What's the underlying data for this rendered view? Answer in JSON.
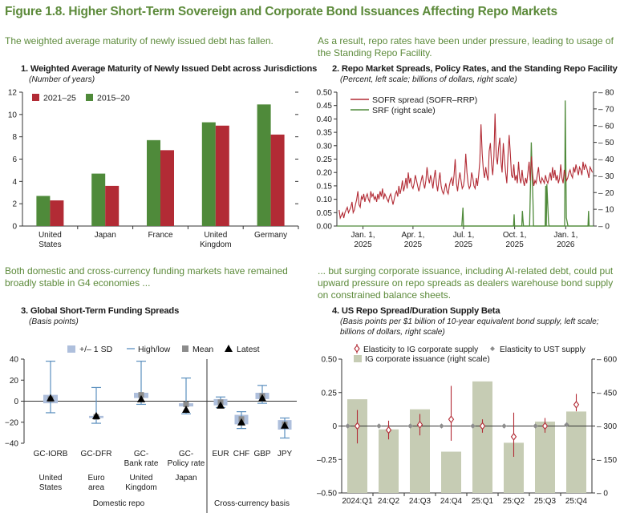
{
  "figure": {
    "title": "Figure 1.8. Higher Short-Term Sovereign and Corporate Bond Issuances Affecting Repo Markets",
    "leads": [
      "The weighted average maturity of newly issued debt has fallen.",
      "As a result, repo rates have been under pressure, leading to usage of the Standing Repo Facility.",
      "Both domestic and cross-currency funding markets have remained broadly stable in G4 economies ...",
      "... but surging corporate issuance, including AI-related debt, could put upward pressure on repo spreads as dealers warehouse bond supply on constrained balance sheets."
    ]
  },
  "colors": {
    "red": "#b22b35",
    "green": "#4f8a3a",
    "light_blue": "#b8c5de",
    "band_blue": "#aebfdc",
    "line_blue": "#5b8fbf",
    "grey": "#8c8c8c",
    "olive": "#c6ccb4",
    "title_green": "#5c8a3a"
  },
  "chart_data": [
    {
      "id": "panel1",
      "type": "bar",
      "title": "1. Weighted Average Maturity of Newly Issued Debt across Jurisdictions",
      "subtitle": "(Number of years)",
      "categories": [
        [
          "United",
          "States"
        ],
        [
          "Japan"
        ],
        [
          "France"
        ],
        [
          "United",
          "Kingdom"
        ],
        [
          "Germany"
        ]
      ],
      "series": [
        {
          "name": "2015–20",
          "values": [
            2.7,
            4.7,
            7.7,
            9.3,
            10.9
          ]
        },
        {
          "name": "2021–25",
          "values": [
            2.3,
            3.6,
            6.8,
            9.0,
            8.2
          ]
        }
      ],
      "legend_order": [
        "2021–25",
        "2015–20"
      ],
      "ylim": [
        0,
        12
      ],
      "yticks": [
        0,
        2,
        4,
        6,
        8,
        10,
        12
      ]
    },
    {
      "id": "panel2",
      "type": "line",
      "title": "2. Repo Market Spreads, Policy Rates, and the Standing Repo Facility",
      "subtitle": "(Percent, left scale; billions of dollars, right scale)",
      "x_start": "2024-11-15",
      "x_end": "2026-02-20",
      "xticks": [
        [
          "Jan. 1,",
          "2025"
        ],
        [
          "Apr. 1,",
          "2025"
        ],
        [
          "Jul. 1,",
          "2025"
        ],
        [
          "Oct. 1,",
          "2025"
        ],
        [
          "Jan. 1,",
          "2026"
        ]
      ],
      "xtick_dates": [
        "2025-01-01",
        "2025-04-01",
        "2025-07-01",
        "2025-10-01",
        "2026-01-01"
      ],
      "ylim_left": [
        0,
        0.5
      ],
      "yticks_left": [
        "0.00",
        "0.05",
        "0.10",
        "0.15",
        "0.20",
        "0.25",
        "0.30",
        "0.35",
        "0.40",
        "0.45",
        "0.50"
      ],
      "ylim_right": [
        0,
        80
      ],
      "yticks_right": [
        0,
        10,
        20,
        30,
        40,
        50,
        60,
        70,
        80
      ],
      "series": [
        {
          "name": "SOFR spread (SOFR–RRP)",
          "axis": "left",
          "key": "sofr",
          "values": [
            0.06,
            0.03,
            0.04,
            0.05,
            0.03,
            0.05,
            0.06,
            0.07,
            0.05,
            0.06,
            0.07,
            0.09,
            0.05,
            0.06,
            0.08,
            0.1,
            0.13,
            0.08,
            0.07,
            0.11,
            0.1,
            0.12,
            0.09,
            0.11,
            0.12,
            0.1,
            0.09,
            0.13,
            0.11,
            0.12,
            0.1,
            0.11,
            0.09,
            0.12,
            0.1,
            0.13,
            0.11,
            0.14,
            0.1,
            0.12,
            0.11,
            0.1,
            0.09,
            0.11,
            0.12,
            0.1,
            0.08,
            0.1,
            0.12,
            0.13,
            0.11,
            0.15,
            0.12,
            0.14,
            0.17,
            0.13,
            0.15,
            0.18,
            0.14,
            0.2,
            0.16,
            0.18,
            0.15,
            0.14,
            0.16,
            0.19,
            0.17,
            0.15,
            0.13,
            0.15,
            0.17,
            0.19,
            0.16,
            0.14,
            0.17,
            0.22,
            0.18,
            0.16,
            0.19,
            0.17,
            0.14,
            0.18,
            0.21,
            0.16,
            0.13,
            0.17,
            0.2,
            0.15,
            0.13,
            0.12,
            0.14,
            0.16,
            0.13,
            0.12,
            0.15,
            0.17,
            0.18,
            0.15,
            0.19,
            0.25,
            0.16,
            0.13,
            0.17,
            0.2,
            0.17,
            0.14,
            0.15,
            0.18,
            0.27,
            0.2,
            0.16,
            0.14,
            0.15,
            0.2,
            0.18,
            0.15,
            0.14,
            0.18,
            0.15,
            0.19,
            0.24,
            0.38,
            0.27,
            0.21,
            0.18,
            0.22,
            0.19,
            0.17,
            0.28,
            0.31,
            0.23,
            0.19,
            0.26,
            0.42,
            0.26,
            0.23,
            0.29,
            0.33,
            0.24,
            0.2,
            0.31,
            0.25,
            0.2,
            0.16,
            0.26,
            0.34,
            0.27,
            0.19,
            0.18,
            0.23,
            0.17,
            0.19,
            0.16,
            0.24,
            0.18,
            0.16,
            0.21,
            0.17,
            0.15,
            0.18,
            0.16,
            0.2,
            0.24,
            0.17,
            0.26,
            0.2,
            0.15,
            0.17,
            0.16,
            0.19,
            0.22,
            0.17,
            0.16,
            0.18,
            0.17,
            0.16,
            0.19,
            0.17,
            0.16,
            0.18,
            0.2,
            0.17,
            0.22,
            0.18,
            0.21,
            0.17,
            0.19,
            0.16,
            0.18,
            0.23,
            0.18,
            0.16,
            0.21,
            0.19,
            0.17,
            0.18,
            0.2,
            0.21,
            0.19,
            0.18,
            0.22,
            0.2,
            0.23,
            0.21,
            0.19,
            0.22,
            0.21,
            0.19,
            0.24,
            0.21,
            0.23,
            0.22,
            0.2,
            0.18,
            0.22,
            0.21,
            0.2
          ]
        },
        {
          "name": "SRF (right scale)",
          "axis": "right",
          "key": "srf",
          "points": [
            [
              "2025-06-28",
              0
            ],
            [
              "2025-06-30",
              11
            ],
            [
              "2025-07-01",
              0
            ],
            [
              "2025-09-29",
              0
            ],
            [
              "2025-09-30",
              7
            ],
            [
              "2025-10-01",
              0
            ],
            [
              "2025-10-14",
              0
            ],
            [
              "2025-10-15",
              9
            ],
            [
              "2025-10-16",
              4
            ],
            [
              "2025-10-17",
              0
            ],
            [
              "2025-10-28",
              0
            ],
            [
              "2025-10-29",
              16
            ],
            [
              "2025-10-30",
              32
            ],
            [
              "2025-10-31",
              50
            ],
            [
              "2025-11-03",
              15
            ],
            [
              "2025-11-04",
              0
            ],
            [
              "2025-11-25",
              0
            ],
            [
              "2025-11-26",
              24
            ],
            [
              "2025-11-27",
              0
            ],
            [
              "2025-11-28",
              25
            ],
            [
              "2025-12-01",
              2
            ],
            [
              "2025-12-02",
              0
            ],
            [
              "2025-12-30",
              0
            ],
            [
              "2025-12-31",
              75
            ],
            [
              "2026-01-02",
              5
            ],
            [
              "2026-01-05",
              0
            ],
            [
              "2026-02-10",
              0
            ],
            [
              "2026-02-11",
              9
            ],
            [
              "2026-02-12",
              0
            ]
          ]
        }
      ]
    },
    {
      "id": "panel3",
      "type": "box",
      "title": "3. Global Short-Term Funding Spreads",
      "subtitle": "(Basis points)",
      "legend": [
        "+/– 1 SD",
        "High/low",
        "Mean",
        "Latest"
      ],
      "ylim": [
        -40,
        40
      ],
      "yticks": [
        -40,
        -20,
        0,
        20,
        40
      ],
      "items": [
        {
          "label": [
            "GC-IORB"
          ],
          "sd_low": -2,
          "sd_high": 6,
          "low": -11,
          "high": 38,
          "mean": 2,
          "latest": 3
        },
        {
          "label": [
            "GC-DFR"
          ],
          "sd_low": -16,
          "sd_high": -14,
          "low": -21,
          "high": 13,
          "mean": -15,
          "latest": -14
        },
        {
          "label": [
            "GC-",
            "Bank rate"
          ],
          "sd_low": 3,
          "sd_high": 8,
          "low": -3,
          "high": 38,
          "mean": 6,
          "latest": 2
        },
        {
          "label": [
            "GC-",
            "Policy rate"
          ],
          "sd_low": -5,
          "sd_high": -2,
          "low": -12,
          "high": 22,
          "mean": -3,
          "latest": -8
        },
        {
          "label": [
            "EUR"
          ],
          "sd_low": -4,
          "sd_high": 2,
          "low": -6,
          "high": 4,
          "mean": -1,
          "latest": -4
        },
        {
          "label": [
            "CHF"
          ],
          "sd_low": -22,
          "sd_high": -13,
          "low": -26,
          "high": -10,
          "mean": -17,
          "latest": -20
        },
        {
          "label": [
            "GBP"
          ],
          "sd_low": 2,
          "sd_high": 8,
          "low": -2,
          "high": 15,
          "mean": 5,
          "latest": 3
        },
        {
          "label": [
            "JPY"
          ],
          "sd_low": -27,
          "sd_high": -18,
          "low": -35,
          "high": -16,
          "mean": -22,
          "latest": -23
        }
      ],
      "groups": [
        {
          "label": [
            "United",
            "States"
          ]
        },
        {
          "label": [
            "Euro",
            "area"
          ]
        },
        {
          "label": [
            "United",
            "Kingdom"
          ]
        },
        {
          "label": [
            "Japan"
          ]
        }
      ],
      "section_labels": [
        "Domestic repo",
        "Cross-currency basis"
      ]
    },
    {
      "id": "panel4",
      "type": "bar+errorbar",
      "title": "4. US Repo Spread/Duration Supply Beta",
      "subtitle": [
        "(Basis points per $1 billion of 10-year equivalent bond supply, left scale;",
        "billions of dollars, right scale)"
      ],
      "legend": [
        "Elasticity to IG corporate supply",
        "Elasticity to UST supply",
        "IG corporate issuance (right scale)"
      ],
      "categories": [
        "2024:Q1",
        "24:Q2",
        "24:Q3",
        "24:Q4",
        "25:Q1",
        "25:Q2",
        "25:Q3",
        "25:Q4"
      ],
      "ylim_left": [
        -0.5,
        0.5
      ],
      "yticks_left": [
        "–0.50",
        "–0.25",
        "0",
        "0.25",
        "0.50"
      ],
      "ylim_right": [
        0,
        600
      ],
      "yticks_right": [
        0,
        150,
        300,
        450,
        600
      ],
      "issuance": [
        420,
        285,
        375,
        185,
        500,
        225,
        320,
        365
      ],
      "ig_corporate": [
        {
          "est": 0.0,
          "lo": -0.13,
          "hi": 0.12
        },
        {
          "est": -0.03,
          "lo": -0.1,
          "hi": 0.04
        },
        {
          "est": 0.01,
          "lo": -0.07,
          "hi": 0.09
        },
        {
          "est": 0.05,
          "lo": -0.11,
          "hi": 0.3
        },
        {
          "est": 0.0,
          "lo": -0.05,
          "hi": 0.05
        },
        {
          "est": -0.08,
          "lo": -0.23,
          "hi": 0.1
        },
        {
          "est": 0.0,
          "lo": -0.05,
          "hi": 0.06
        },
        {
          "est": 0.16,
          "lo": 0.11,
          "hi": 0.24
        }
      ],
      "ust": [
        0.0,
        0.0,
        0.0,
        0.0,
        0.0,
        0.0,
        0.0,
        0.01
      ]
    }
  ]
}
